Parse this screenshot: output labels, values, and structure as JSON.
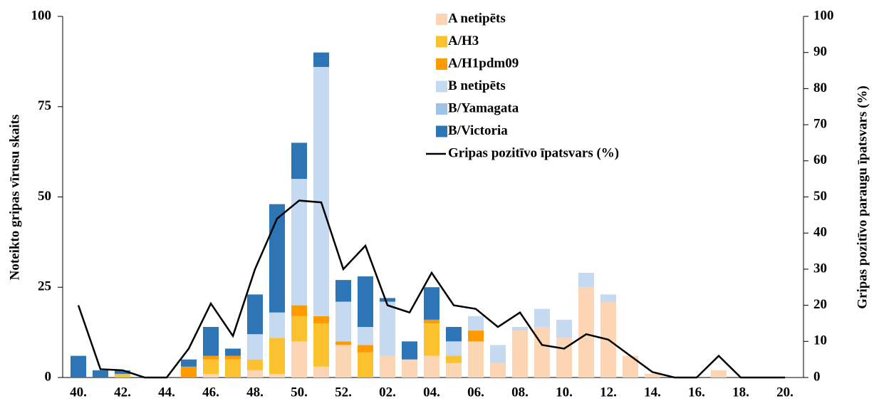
{
  "chart_data": {
    "type": "bar",
    "stacked": true,
    "y_label": "Noteikto gripas vīrusu skaits",
    "y2_label": "Gripas pozitīvo paraugu īpatsvars (%)",
    "categories": [
      "40.",
      null,
      "42.",
      null,
      "44.",
      null,
      "46.",
      null,
      "48.",
      null,
      "50.",
      null,
      "52.",
      null,
      "02.",
      null,
      "04.",
      null,
      "06.",
      null,
      "08.",
      null,
      "10.",
      null,
      "12.",
      null,
      "14.",
      null,
      "16.",
      null,
      "18.",
      null,
      "20."
    ],
    "ylim": [
      0,
      100
    ],
    "yticks": [
      0,
      25,
      50,
      75,
      100
    ],
    "y2lim": [
      0,
      100
    ],
    "y2ticks": [
      0,
      10,
      20,
      30,
      40,
      50,
      60,
      70,
      80,
      90,
      100
    ],
    "legend": "top",
    "series": [
      {
        "name": "A netipēts",
        "color": "#fcd5b4",
        "values": [
          0,
          0,
          0,
          0,
          0,
          0,
          1,
          0,
          2,
          1,
          10,
          3,
          9,
          0,
          6,
          5,
          6,
          4,
          10,
          4,
          13,
          14,
          11,
          25,
          21,
          6,
          1,
          0,
          0,
          2,
          0,
          0,
          0
        ]
      },
      {
        "name": "A/H3",
        "color": "#fcc12f",
        "values": [
          0,
          0,
          1,
          0,
          0,
          0,
          4,
          5,
          3,
          10,
          7,
          12,
          0,
          7,
          0,
          0,
          9,
          2,
          0,
          0,
          0,
          0,
          0,
          0,
          0,
          0,
          0,
          0,
          0,
          0,
          0,
          0,
          0
        ]
      },
      {
        "name": "A/H1pdm09",
        "color": "#ff9a00",
        "values": [
          0,
          0,
          0,
          0,
          0,
          3,
          1,
          1,
          0,
          0,
          3,
          2,
          1,
          2,
          0,
          0,
          1,
          0,
          3,
          0,
          0,
          0,
          0,
          0,
          0,
          0,
          0,
          0,
          0,
          0,
          0,
          0,
          0
        ]
      },
      {
        "name": "B netipēts",
        "color": "#c5d9f1",
        "values": [
          0,
          0,
          0,
          0,
          0,
          0,
          0,
          0,
          7,
          7,
          35,
          69,
          11,
          5,
          15,
          0,
          0,
          4,
          4,
          5,
          1,
          5,
          5,
          4,
          2,
          0,
          0,
          0,
          0,
          0,
          0,
          0,
          0
        ]
      },
      {
        "name": "B/Yamagata",
        "color": "#9dc3e6",
        "values": [
          0,
          0,
          0,
          0,
          0,
          0,
          0,
          0,
          0,
          0,
          0,
          0,
          0,
          0,
          0,
          0,
          0,
          0,
          0,
          0,
          0,
          0,
          0,
          0,
          0,
          0,
          0,
          0,
          0,
          0,
          0,
          0,
          0
        ]
      },
      {
        "name": "B/Victoria",
        "color": "#2e75b6",
        "values": [
          6,
          2,
          1,
          0,
          0,
          2,
          8,
          2,
          11,
          30,
          10,
          4,
          6,
          14,
          1,
          5,
          9,
          4,
          0,
          0,
          0,
          0,
          0,
          0,
          0,
          0,
          0,
          0,
          0,
          0,
          0,
          0,
          0
        ]
      },
      {
        "name": "Gripas pozitīvo īpatsvars (%)",
        "color": "#000000",
        "type": "line",
        "axis": "y2",
        "values": [
          20,
          2.3,
          2,
          0,
          0,
          8,
          20.5,
          11.5,
          30,
          44,
          49,
          48.5,
          30,
          36.5,
          20,
          18,
          29,
          20,
          19,
          14,
          18,
          9,
          8,
          12,
          10.5,
          6,
          1.5,
          0,
          0,
          6,
          0,
          0,
          0
        ]
      }
    ]
  }
}
